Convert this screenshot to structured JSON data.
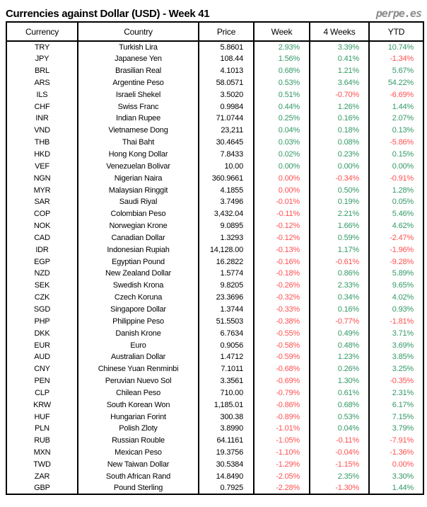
{
  "page": {
    "title": "Currencies against Dollar (USD) - Week 41",
    "logo_text": "perpe.es"
  },
  "colors": {
    "positive": "#339966",
    "negative": "#ff5050",
    "heading_text": "#000000",
    "logo_gray": "#8c8c8c",
    "table_border": "#000000"
  },
  "chart_data": {
    "type": "table",
    "title": "Currencies against Dollar (USD) - Week 41",
    "columns": [
      "Currency",
      "Country",
      "Price",
      "Week",
      "4 Weeks",
      "YTD"
    ],
    "rows": [
      {
        "code": "TRY",
        "country": "Turkish Lira",
        "price": "5.8601",
        "week": "2.93%",
        "week_sign": "pos",
        "four_weeks": "3.39%",
        "four_weeks_sign": "pos",
        "ytd": "10.74%",
        "ytd_sign": "pos"
      },
      {
        "code": "JPY",
        "country": "Japanese Yen",
        "price": "108.44",
        "week": "1.56%",
        "week_sign": "pos",
        "four_weeks": "0.41%",
        "four_weeks_sign": "pos",
        "ytd": "-1.34%",
        "ytd_sign": "neg"
      },
      {
        "code": "BRL",
        "country": "Brasilian Real",
        "price": "4.1013",
        "week": "0.68%",
        "week_sign": "pos",
        "four_weeks": "1.21%",
        "four_weeks_sign": "pos",
        "ytd": "5.67%",
        "ytd_sign": "pos"
      },
      {
        "code": "ARS",
        "country": "Argentine Peso",
        "price": "58.0571",
        "week": "0.53%",
        "week_sign": "pos",
        "four_weeks": "3.64%",
        "four_weeks_sign": "pos",
        "ytd": "54.22%",
        "ytd_sign": "pos"
      },
      {
        "code": "ILS",
        "country": "Israeli Shekel",
        "price": "3.5020",
        "week": "0.51%",
        "week_sign": "pos",
        "four_weeks": "-0.70%",
        "four_weeks_sign": "neg",
        "ytd": "-6.69%",
        "ytd_sign": "neg"
      },
      {
        "code": "CHF",
        "country": "Swiss Franc",
        "price": "0.9984",
        "week": "0.44%",
        "week_sign": "pos",
        "four_weeks": "1.26%",
        "four_weeks_sign": "pos",
        "ytd": "1.44%",
        "ytd_sign": "pos"
      },
      {
        "code": "INR",
        "country": "Indian Rupee",
        "price": "71.0744",
        "week": "0.25%",
        "week_sign": "pos",
        "four_weeks": "0.16%",
        "four_weeks_sign": "pos",
        "ytd": "2.07%",
        "ytd_sign": "pos"
      },
      {
        "code": "VND",
        "country": "Vietnamese Dong",
        "price": "23,211",
        "week": "0.04%",
        "week_sign": "pos",
        "four_weeks": "0.18%",
        "four_weeks_sign": "pos",
        "ytd": "0.13%",
        "ytd_sign": "pos"
      },
      {
        "code": "THB",
        "country": "Thai Baht",
        "price": "30.4645",
        "week": "0.03%",
        "week_sign": "pos",
        "four_weeks": "0.08%",
        "four_weeks_sign": "pos",
        "ytd": "-5.86%",
        "ytd_sign": "neg"
      },
      {
        "code": "HKD",
        "country": "Hong Kong Dollar",
        "price": "7.8433",
        "week": "0.02%",
        "week_sign": "pos",
        "four_weeks": "0.23%",
        "four_weeks_sign": "pos",
        "ytd": "0.15%",
        "ytd_sign": "pos"
      },
      {
        "code": "VEF",
        "country": "Venezuelan Bolivar",
        "price": "10.00",
        "week": "0.00%",
        "week_sign": "pos",
        "four_weeks": "0.00%",
        "four_weeks_sign": "pos",
        "ytd": "0.00%",
        "ytd_sign": "pos"
      },
      {
        "code": "NGN",
        "country": "Nigerian Naira",
        "price": "360.9661",
        "week": "0.00%",
        "week_sign": "neg",
        "four_weeks": "-0.34%",
        "four_weeks_sign": "neg",
        "ytd": "-0.91%",
        "ytd_sign": "neg"
      },
      {
        "code": "MYR",
        "country": "Malaysian Ringgit",
        "price": "4.1855",
        "week": "0.00%",
        "week_sign": "neg",
        "four_weeks": "0.50%",
        "four_weeks_sign": "pos",
        "ytd": "1.28%",
        "ytd_sign": "pos"
      },
      {
        "code": "SAR",
        "country": "Saudi Riyal",
        "price": "3.7496",
        "week": "-0.01%",
        "week_sign": "neg",
        "four_weeks": "0.19%",
        "four_weeks_sign": "pos",
        "ytd": "0.05%",
        "ytd_sign": "pos"
      },
      {
        "code": "COP",
        "country": "Colombian Peso",
        "price": "3,432.04",
        "week": "-0.11%",
        "week_sign": "neg",
        "four_weeks": "2.21%",
        "four_weeks_sign": "pos",
        "ytd": "5.46%",
        "ytd_sign": "pos"
      },
      {
        "code": "NOK",
        "country": "Norwegian Krone",
        "price": "9.0895",
        "week": "-0.12%",
        "week_sign": "neg",
        "four_weeks": "1.66%",
        "four_weeks_sign": "pos",
        "ytd": "4.62%",
        "ytd_sign": "pos"
      },
      {
        "code": "CAD",
        "country": "Canadian Dollar",
        "price": "1.3293",
        "week": "-0.12%",
        "week_sign": "neg",
        "four_weeks": "0.59%",
        "four_weeks_sign": "pos",
        "ytd": "-2.47%",
        "ytd_sign": "neg"
      },
      {
        "code": "IDR",
        "country": "Indonesian Rupiah",
        "price": "14,128.00",
        "week": "-0.13%",
        "week_sign": "neg",
        "four_weeks": "1.17%",
        "four_weeks_sign": "pos",
        "ytd": "-1.96%",
        "ytd_sign": "neg"
      },
      {
        "code": "EGP",
        "country": "Egyptian Pound",
        "price": "16.2822",
        "week": "-0.16%",
        "week_sign": "neg",
        "four_weeks": "-0.61%",
        "four_weeks_sign": "neg",
        "ytd": "-9.28%",
        "ytd_sign": "neg"
      },
      {
        "code": "NZD",
        "country": "New Zealand Dollar",
        "price": "1.5774",
        "week": "-0.18%",
        "week_sign": "neg",
        "four_weeks": "0.86%",
        "four_weeks_sign": "pos",
        "ytd": "5.89%",
        "ytd_sign": "pos"
      },
      {
        "code": "SEK",
        "country": "Swedish Krona",
        "price": "9.8205",
        "week": "-0.26%",
        "week_sign": "neg",
        "four_weeks": "2.33%",
        "four_weeks_sign": "pos",
        "ytd": "9.65%",
        "ytd_sign": "pos"
      },
      {
        "code": "CZK",
        "country": "Czech Koruna",
        "price": "23.3696",
        "week": "-0.32%",
        "week_sign": "neg",
        "four_weeks": "0.34%",
        "four_weeks_sign": "pos",
        "ytd": "4.02%",
        "ytd_sign": "pos"
      },
      {
        "code": "SGD",
        "country": "Singapore Dollar",
        "price": "1.3744",
        "week": "-0.33%",
        "week_sign": "neg",
        "four_weeks": "0.16%",
        "four_weeks_sign": "pos",
        "ytd": "0.93%",
        "ytd_sign": "pos"
      },
      {
        "code": "PHP",
        "country": "Philippine Peso",
        "price": "51.5503",
        "week": "-0.38%",
        "week_sign": "neg",
        "four_weeks": "-0.77%",
        "four_weeks_sign": "neg",
        "ytd": "-1.81%",
        "ytd_sign": "neg"
      },
      {
        "code": "DKK",
        "country": "Danish Krone",
        "price": "6.7634",
        "week": "-0.55%",
        "week_sign": "neg",
        "four_weeks": "0.49%",
        "four_weeks_sign": "pos",
        "ytd": "3.71%",
        "ytd_sign": "pos"
      },
      {
        "code": "EUR",
        "country": "Euro",
        "price": "0.9056",
        "week": "-0.58%",
        "week_sign": "neg",
        "four_weeks": "0.48%",
        "four_weeks_sign": "pos",
        "ytd": "3.69%",
        "ytd_sign": "pos"
      },
      {
        "code": "AUD",
        "country": "Australian Dollar",
        "price": "1.4712",
        "week": "-0.59%",
        "week_sign": "neg",
        "four_weeks": "1.23%",
        "four_weeks_sign": "pos",
        "ytd": "3.85%",
        "ytd_sign": "pos"
      },
      {
        "code": "CNY",
        "country": "Chinese Yuan Renminbi",
        "price": "7.1011",
        "week": "-0.68%",
        "week_sign": "neg",
        "four_weeks": "0.26%",
        "four_weeks_sign": "pos",
        "ytd": "3.25%",
        "ytd_sign": "pos"
      },
      {
        "code": "PEN",
        "country": "Peruvian Nuevo Sol",
        "price": "3.3561",
        "week": "-0.69%",
        "week_sign": "neg",
        "four_weeks": "1.30%",
        "four_weeks_sign": "pos",
        "ytd": "-0.35%",
        "ytd_sign": "neg"
      },
      {
        "code": "CLP",
        "country": "Chilean Peso",
        "price": "710.00",
        "week": "-0.79%",
        "week_sign": "neg",
        "four_weeks": "0.61%",
        "four_weeks_sign": "pos",
        "ytd": "2.31%",
        "ytd_sign": "pos"
      },
      {
        "code": "KRW",
        "country": "South Korean Won",
        "price": "1,185.01",
        "week": "-0.86%",
        "week_sign": "neg",
        "four_weeks": "0.68%",
        "four_weeks_sign": "pos",
        "ytd": "6.17%",
        "ytd_sign": "pos"
      },
      {
        "code": "HUF",
        "country": "Hungarian Forint",
        "price": "300.38",
        "week": "-0.89%",
        "week_sign": "neg",
        "four_weeks": "0.53%",
        "four_weeks_sign": "pos",
        "ytd": "7.15%",
        "ytd_sign": "pos"
      },
      {
        "code": "PLN",
        "country": "Polish Zloty",
        "price": "3.8990",
        "week": "-1.01%",
        "week_sign": "neg",
        "four_weeks": "0.04%",
        "four_weeks_sign": "pos",
        "ytd": "3.79%",
        "ytd_sign": "pos"
      },
      {
        "code": "RUB",
        "country": "Russian Rouble",
        "price": "64.1161",
        "week": "-1.05%",
        "week_sign": "neg",
        "four_weeks": "-0.11%",
        "four_weeks_sign": "neg",
        "ytd": "-7.91%",
        "ytd_sign": "neg"
      },
      {
        "code": "MXN",
        "country": "Mexican Peso",
        "price": "19.3756",
        "week": "-1.10%",
        "week_sign": "neg",
        "four_weeks": "-0.04%",
        "four_weeks_sign": "neg",
        "ytd": "-1.36%",
        "ytd_sign": "neg"
      },
      {
        "code": "TWD",
        "country": "New Taiwan Dollar",
        "price": "30.5384",
        "week": "-1.29%",
        "week_sign": "neg",
        "four_weeks": "-1.15%",
        "four_weeks_sign": "neg",
        "ytd": "0.00%",
        "ytd_sign": "neg"
      },
      {
        "code": "ZAR",
        "country": "South African Rand",
        "price": "14.8490",
        "week": "-2.05%",
        "week_sign": "neg",
        "four_weeks": "2.35%",
        "four_weeks_sign": "pos",
        "ytd": "3.30%",
        "ytd_sign": "pos"
      },
      {
        "code": "GBP",
        "country": "Pound Sterling",
        "price": "0.7925",
        "week": "-2.28%",
        "week_sign": "neg",
        "four_weeks": "-1.30%",
        "four_weeks_sign": "neg",
        "ytd": "1.44%",
        "ytd_sign": "pos"
      }
    ]
  }
}
